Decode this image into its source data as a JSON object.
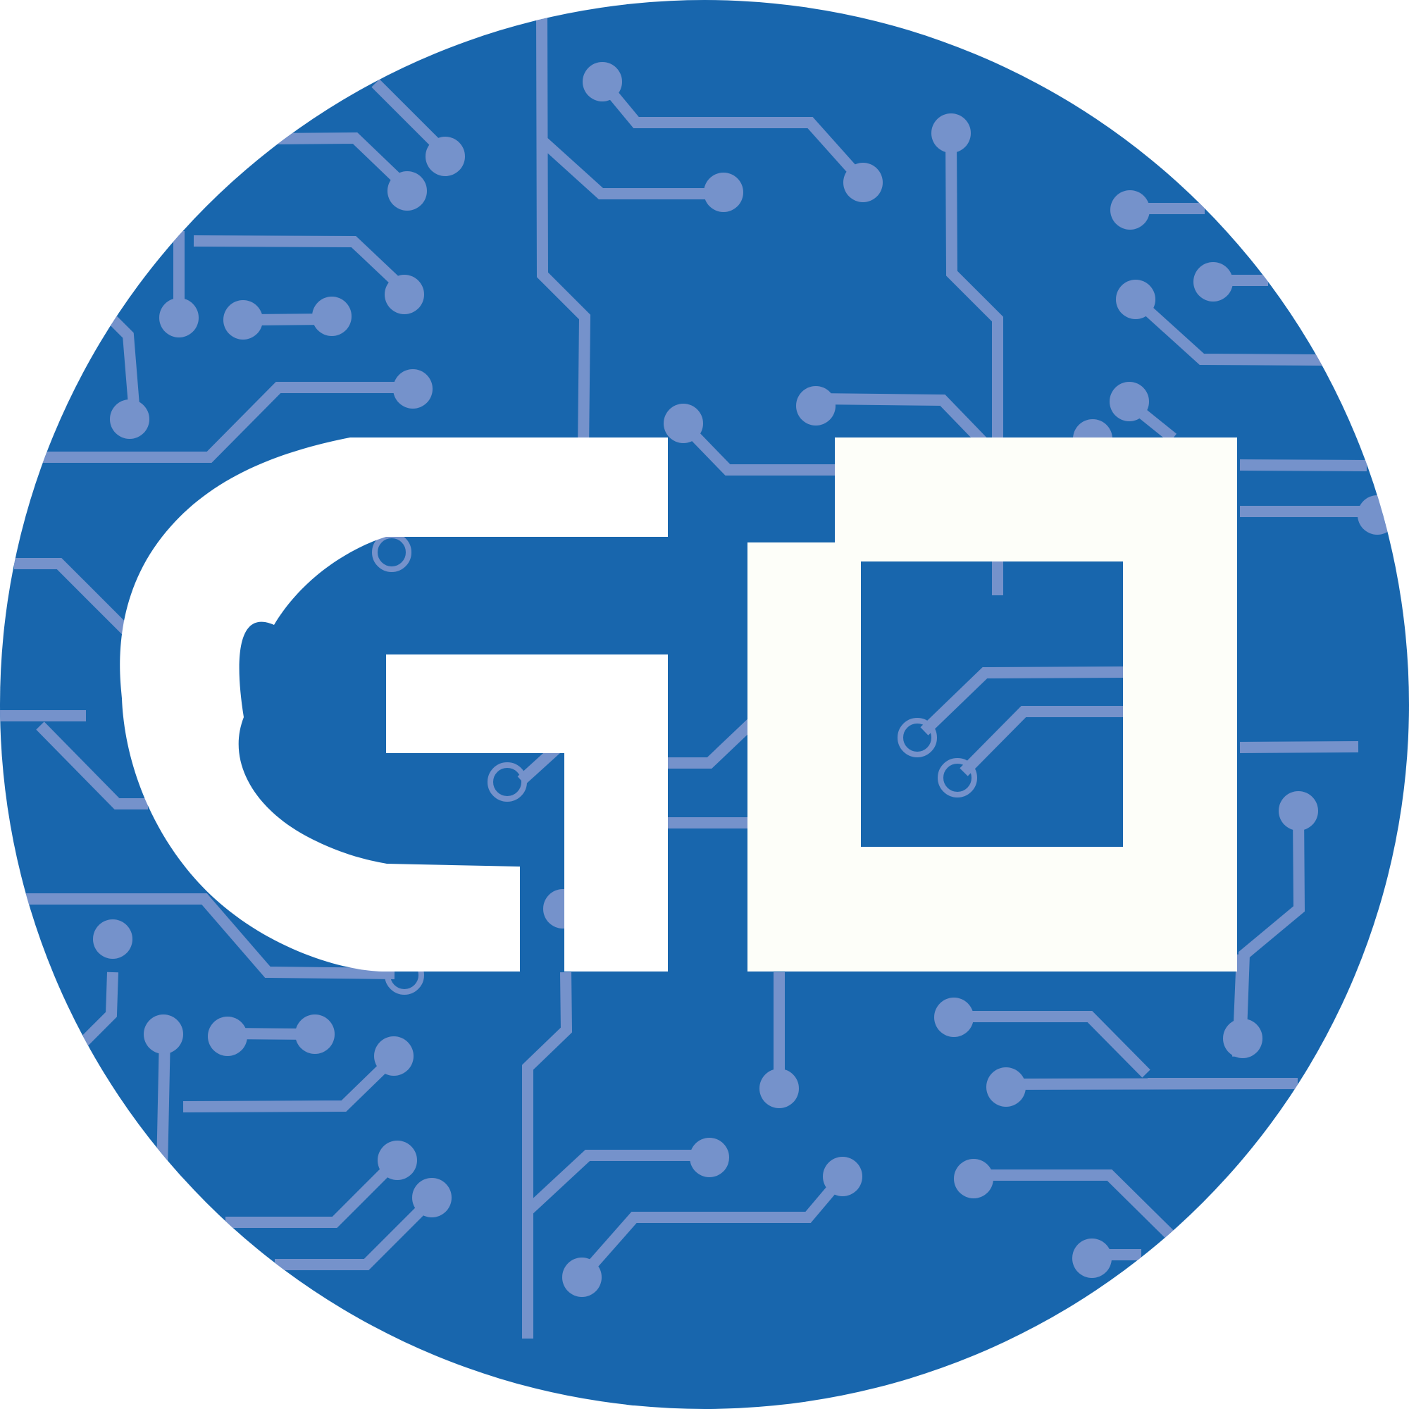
{
  "logo": {
    "name": "circuit-board-logo",
    "lettering": "GO",
    "colors": {
      "background": "#ffffff",
      "badge": "#1866ad",
      "circuit": "#7592cb",
      "letter_g": "#ffffff",
      "letter_o": "#fdfef9"
    }
  }
}
